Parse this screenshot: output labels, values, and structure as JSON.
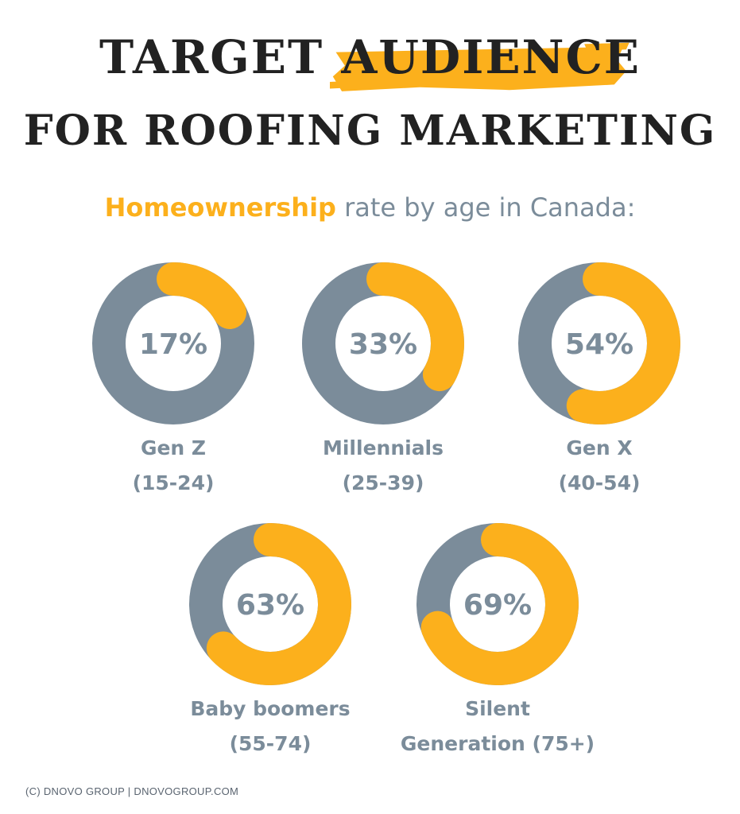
{
  "header": {
    "title_part1": "TARGET",
    "title_highlight": "AUDIENCE",
    "title_line2": "FOR ROOFING MARKETING",
    "subtitle_highlight": "Homeownership",
    "subtitle_rest": " rate by age in Canada:"
  },
  "colors": {
    "accent": "#fcb01c",
    "ring_base": "#7b8c9a",
    "text_muted": "#7b8c9a",
    "title": "#222222"
  },
  "chart_data": {
    "type": "pie",
    "title": "Homeownership rate by age in Canada:",
    "items": [
      {
        "value_label": "17%",
        "value": 17,
        "label_line1": "Gen Z",
        "label_line2": "(15-24)"
      },
      {
        "value_label": "33%",
        "value": 33,
        "label_line1": "Millennials",
        "label_line2": "(25-39)"
      },
      {
        "value_label": "54%",
        "value": 54,
        "label_line1": "Gen X",
        "label_line2": "(40-54)"
      },
      {
        "value_label": "63%",
        "value": 63,
        "label_line1": "Baby boomers",
        "label_line2": "(55-74)"
      },
      {
        "value_label": "69%",
        "value": 69,
        "label_line1": "Silent",
        "label_line2": "Generation (75+)"
      }
    ]
  },
  "footer": {
    "credit": "(C) DNOVO GROUP | DNOVOGROUP.COM"
  }
}
